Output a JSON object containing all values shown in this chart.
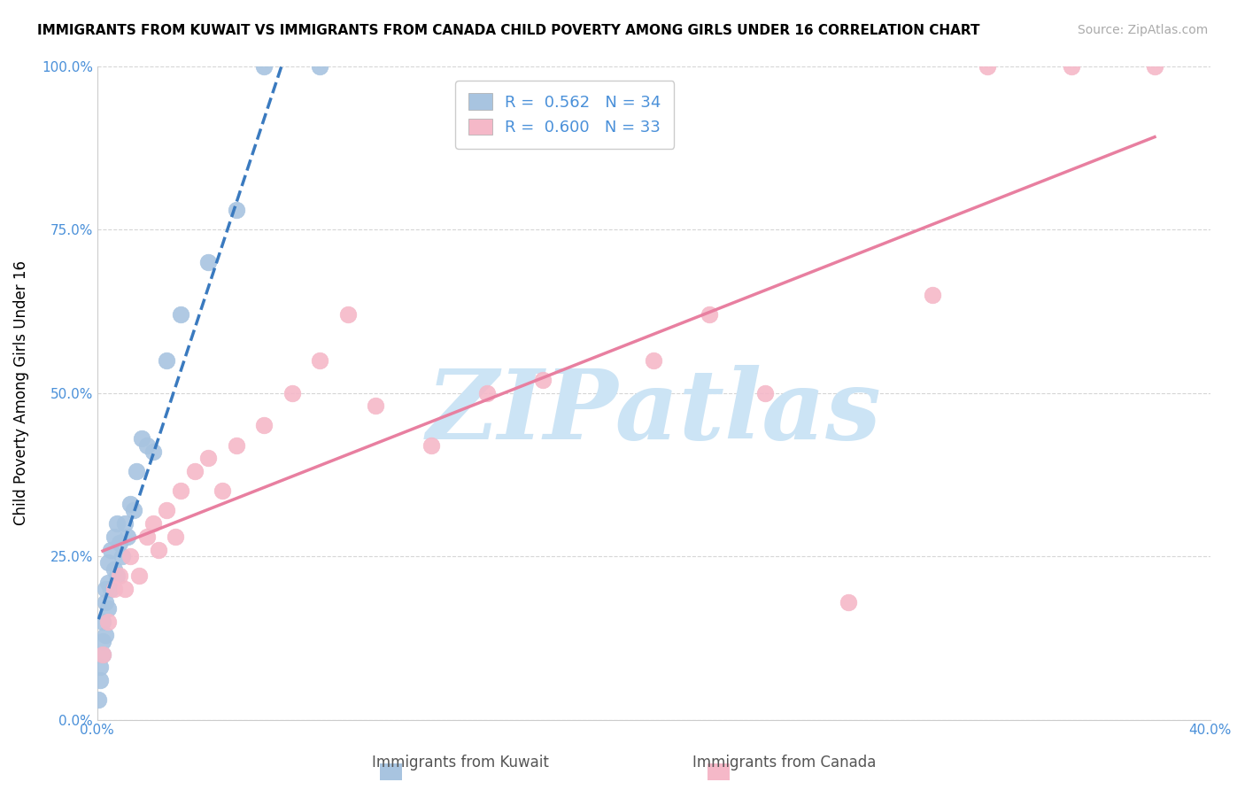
{
  "title": "IMMIGRANTS FROM KUWAIT VS IMMIGRANTS FROM CANADA CHILD POVERTY AMONG GIRLS UNDER 16 CORRELATION CHART",
  "source": "Source: ZipAtlas.com",
  "ylabel": "Child Poverty Among Girls Under 16",
  "xlabel_kuwait": "Immigrants from Kuwait",
  "xlabel_canada": "Immigrants from Canada",
  "xlim": [
    0.0,
    0.4
  ],
  "ylim": [
    0.0,
    1.0
  ],
  "R_kuwait": 0.562,
  "N_kuwait": 34,
  "R_canada": 0.6,
  "N_canada": 33,
  "kuwait_color": "#a8c4e0",
  "canada_color": "#f5b8c8",
  "kuwait_line_color": "#3a7abf",
  "canada_line_color": "#e87fa0",
  "watermark": "ZIPatlas",
  "watermark_color": "#cce4f5",
  "tick_color": "#4a90d9",
  "kuwait_x": [
    0.0005,
    0.001,
    0.001,
    0.002,
    0.002,
    0.002,
    0.003,
    0.003,
    0.003,
    0.004,
    0.004,
    0.004,
    0.005,
    0.005,
    0.006,
    0.006,
    0.007,
    0.007,
    0.008,
    0.009,
    0.01,
    0.011,
    0.012,
    0.013,
    0.014,
    0.016,
    0.018,
    0.02,
    0.025,
    0.03,
    0.04,
    0.05,
    0.06,
    0.08
  ],
  "kuwait_y": [
    0.03,
    0.06,
    0.08,
    0.1,
    0.12,
    0.15,
    0.13,
    0.18,
    0.2,
    0.17,
    0.21,
    0.24,
    0.2,
    0.26,
    0.23,
    0.28,
    0.22,
    0.3,
    0.27,
    0.25,
    0.3,
    0.28,
    0.33,
    0.32,
    0.38,
    0.43,
    0.42,
    0.41,
    0.55,
    0.62,
    0.7,
    0.78,
    1.0,
    1.0
  ],
  "canada_x": [
    0.002,
    0.004,
    0.006,
    0.008,
    0.01,
    0.012,
    0.015,
    0.018,
    0.02,
    0.022,
    0.025,
    0.028,
    0.03,
    0.035,
    0.04,
    0.045,
    0.05,
    0.06,
    0.07,
    0.08,
    0.09,
    0.1,
    0.12,
    0.14,
    0.16,
    0.2,
    0.22,
    0.24,
    0.27,
    0.3,
    0.32,
    0.35,
    0.38
  ],
  "canada_y": [
    0.1,
    0.15,
    0.2,
    0.22,
    0.2,
    0.25,
    0.22,
    0.28,
    0.3,
    0.26,
    0.32,
    0.28,
    0.35,
    0.38,
    0.4,
    0.35,
    0.42,
    0.45,
    0.5,
    0.55,
    0.62,
    0.48,
    0.42,
    0.5,
    0.52,
    0.55,
    0.62,
    0.5,
    0.18,
    0.65,
    1.0,
    1.0,
    1.0
  ]
}
